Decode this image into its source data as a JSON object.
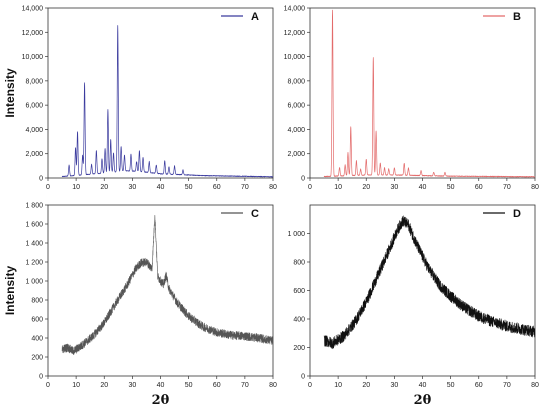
{
  "chart_data": [
    {
      "type": "line",
      "legend": "A",
      "color": "#3b3b9e",
      "ylabel": "Intensity",
      "xlabel": "",
      "xlim": [
        0,
        80
      ],
      "ylim": [
        0,
        14000
      ],
      "xticks": [
        0,
        10,
        20,
        30,
        40,
        50,
        60,
        70,
        80
      ],
      "yticks": [
        0,
        2000,
        4000,
        6000,
        8000,
        10000,
        12000,
        14000
      ],
      "ytick_labels": [
        "0",
        "2,000",
        "4,000",
        "6,000",
        "8,000",
        "10,000",
        "12,000",
        "14,000"
      ],
      "legend_position": "top-right",
      "baseline": [
        [
          5,
          120
        ],
        [
          12,
          250
        ],
        [
          22,
          450
        ],
        [
          27,
          600
        ],
        [
          32,
          550
        ],
        [
          40,
          350
        ],
        [
          55,
          200
        ],
        [
          80,
          100
        ]
      ],
      "peaks": [
        [
          7.5,
          900
        ],
        [
          9.8,
          2300
        ],
        [
          10.5,
          3600
        ],
        [
          12.3,
          1600
        ],
        [
          13.0,
          7600
        ],
        [
          15.5,
          800
        ],
        [
          17.2,
          1900
        ],
        [
          19.2,
          1200
        ],
        [
          20.3,
          2000
        ],
        [
          21.3,
          5200
        ],
        [
          22.3,
          2700
        ],
        [
          23.3,
          1600
        ],
        [
          24.8,
          12000
        ],
        [
          26.0,
          2000
        ],
        [
          27.2,
          1300
        ],
        [
          29.5,
          1400
        ],
        [
          31.5,
          800
        ],
        [
          32.5,
          1700
        ],
        [
          33.8,
          1200
        ],
        [
          36.0,
          900
        ],
        [
          38.5,
          700
        ],
        [
          41.5,
          1100
        ],
        [
          43.0,
          600
        ],
        [
          45.0,
          700
        ],
        [
          48.0,
          400
        ]
      ]
    },
    {
      "type": "line",
      "legend": "B",
      "color": "#e36b6b",
      "ylabel": "",
      "xlabel": "",
      "xlim": [
        0,
        80
      ],
      "ylim": [
        0,
        14000
      ],
      "xticks": [
        0,
        10,
        20,
        30,
        40,
        50,
        60,
        70,
        80
      ],
      "yticks": [
        0,
        2000,
        4000,
        6000,
        8000,
        10000,
        12000,
        14000
      ],
      "ytick_labels": [
        "0",
        "2,000",
        "4,000",
        "6,000",
        "8,000",
        "10,000",
        "12,000",
        "14,000"
      ],
      "legend_position": "top-right",
      "baseline": [
        [
          5,
          120
        ],
        [
          20,
          250
        ],
        [
          30,
          250
        ],
        [
          50,
          150
        ],
        [
          80,
          100
        ]
      ],
      "peaks": [
        [
          8.0,
          13700
        ],
        [
          10.5,
          700
        ],
        [
          12.5,
          900
        ],
        [
          13.5,
          1900
        ],
        [
          14.5,
          4000
        ],
        [
          16.5,
          1200
        ],
        [
          18.0,
          500
        ],
        [
          20.0,
          1300
        ],
        [
          22.5,
          9700
        ],
        [
          23.5,
          3600
        ],
        [
          25.0,
          1000
        ],
        [
          26.5,
          600
        ],
        [
          28.0,
          500
        ],
        [
          30.0,
          600
        ],
        [
          33.5,
          1000
        ],
        [
          35.0,
          600
        ],
        [
          39.5,
          400
        ],
        [
          44.0,
          300
        ],
        [
          48.0,
          300
        ]
      ]
    },
    {
      "type": "line",
      "legend": "C",
      "color": "#555555",
      "ylabel": "Intensity",
      "xlabel": "2θ",
      "xlim": [
        0,
        80
      ],
      "ylim": [
        0,
        1800
      ],
      "xticks": [
        0,
        10,
        20,
        30,
        40,
        50,
        60,
        70,
        80
      ],
      "yticks": [
        0,
        200,
        400,
        600,
        800,
        1000,
        1200,
        1400,
        1600,
        1800
      ],
      "ytick_labels": [
        "0",
        "200",
        "400",
        "600",
        "800",
        "1 000",
        "1 200",
        "1 400",
        "1 600",
        "1 800"
      ],
      "legend_position": "top-right",
      "x_range": [
        5,
        80
      ],
      "envelope": [
        [
          5,
          280
        ],
        [
          7,
          300
        ],
        [
          9,
          260
        ],
        [
          12,
          320
        ],
        [
          16,
          420
        ],
        [
          20,
          560
        ],
        [
          24,
          760
        ],
        [
          28,
          950
        ],
        [
          31,
          1120
        ],
        [
          33,
          1190
        ],
        [
          35,
          1200
        ],
        [
          37,
          1130
        ],
        [
          38,
          1700
        ],
        [
          39,
          1050
        ],
        [
          41,
          960
        ],
        [
          42,
          1060
        ],
        [
          43,
          920
        ],
        [
          46,
          770
        ],
        [
          50,
          630
        ],
        [
          55,
          520
        ],
        [
          60,
          460
        ],
        [
          65,
          430
        ],
        [
          70,
          420
        ],
        [
          75,
          400
        ],
        [
          80,
          370
        ]
      ],
      "noise": 45
    },
    {
      "type": "line",
      "legend": "D",
      "color": "#111111",
      "ylabel": "",
      "xlabel": "2θ",
      "xlim": [
        0,
        80
      ],
      "ylim": [
        0,
        1200
      ],
      "xticks": [
        0,
        10,
        20,
        30,
        40,
        50,
        60,
        70,
        80
      ],
      "yticks": [
        0,
        200,
        400,
        600,
        800,
        1000
      ],
      "ytick_labels": [
        "0",
        "200",
        "400",
        "600",
        "800",
        "1 000"
      ],
      "legend_position": "top-right",
      "x_range": [
        5,
        80
      ],
      "envelope": [
        [
          5,
          250
        ],
        [
          8,
          230
        ],
        [
          12,
          280
        ],
        [
          16,
          380
        ],
        [
          20,
          520
        ],
        [
          24,
          700
        ],
        [
          28,
          880
        ],
        [
          31,
          1020
        ],
        [
          33,
          1090
        ],
        [
          35,
          1060
        ],
        [
          38,
          920
        ],
        [
          42,
          760
        ],
        [
          46,
          640
        ],
        [
          50,
          560
        ],
        [
          55,
          480
        ],
        [
          60,
          420
        ],
        [
          65,
          380
        ],
        [
          70,
          350
        ],
        [
          75,
          330
        ],
        [
          80,
          310
        ]
      ],
      "noise": 40
    }
  ]
}
